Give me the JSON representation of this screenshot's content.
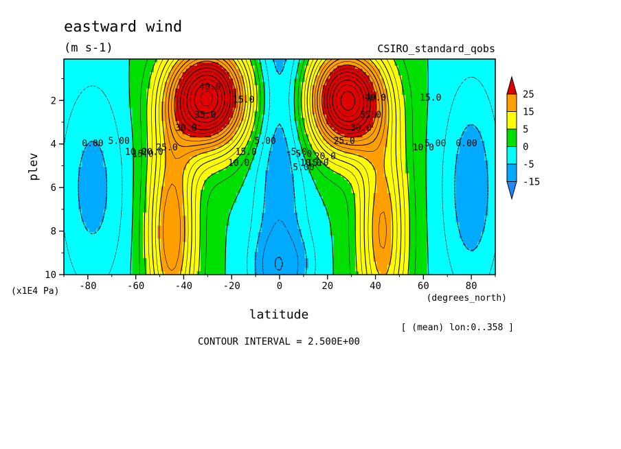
{
  "chart_data": {
    "type": "heatmap",
    "title": "eastward wind",
    "subtitle": "(m s-1)",
    "dataset_label": "CSIRO_standard_qobs",
    "xlabel": "latitude",
    "x_units": "(degrees_north)",
    "ylabel": "plev",
    "y_units": "(x1E4 Pa)",
    "x_ticks": [
      "-80",
      "-60",
      "-40",
      "-20",
      "0",
      "20",
      "40",
      "60",
      "80"
    ],
    "y_ticks": [
      "2",
      "4",
      "6",
      "8",
      "10"
    ],
    "xlim": [
      -90,
      90
    ],
    "ylim": [
      0.1,
      10
    ],
    "y_reversed": true,
    "averaging_note": "[ (mean) lon:0..358 ]",
    "contour_interval": "CONTOUR INTERVAL = 2.500E+00",
    "colorbar": {
      "labels": [
        "25",
        "15",
        "5",
        "0",
        "-5",
        "-15"
      ],
      "bounds": [
        -15,
        -5,
        0,
        5,
        15,
        25
      ],
      "colors": [
        "#1e88ff",
        "#00aaff",
        "#00ffff",
        "#00e000",
        "#ffff00",
        "#ffa000",
        "#e00000"
      ]
    },
    "fill_levels": [
      {
        "min": -15,
        "max": -5,
        "color": "#00aaff"
      },
      {
        "min": -5,
        "max": 0,
        "color": "#00ffff"
      },
      {
        "min": 0,
        "max": 5,
        "color": "#00e000"
      },
      {
        "min": 5,
        "max": 15,
        "color": "#ffff00"
      },
      {
        "min": 15,
        "max": 25,
        "color": "#ffa000"
      },
      {
        "min": 25,
        "max": 45,
        "color": "#e00000"
      }
    ],
    "contour_labels": [
      {
        "text": "40.0",
        "lat": -29,
        "plev": 1.5
      },
      {
        "text": "35.0",
        "lat": -31,
        "plev": 2.8
      },
      {
        "text": "30.0",
        "lat": -39,
        "plev": 3.4
      },
      {
        "text": "25.0",
        "lat": -47,
        "plev": 4.3
      },
      {
        "text": "20.0",
        "lat": -53,
        "plev": 4.5
      },
      {
        "text": "15.0",
        "lat": -57,
        "plev": 4.6
      },
      {
        "text": "10.0",
        "lat": -60,
        "plev": 4.5
      },
      {
        "text": "5.00",
        "lat": -67,
        "plev": 4.0
      },
      {
        "text": "0.00",
        "lat": -78,
        "plev": 4.1
      },
      {
        "text": "15.0",
        "lat": -15,
        "plev": 2.1
      },
      {
        "text": "10.0",
        "lat": -17,
        "plev": 5.0
      },
      {
        "text": "15.0",
        "lat": -14,
        "plev": 4.5
      },
      {
        "text": "5.00",
        "lat": -6,
        "plev": 4.0
      },
      {
        "text": "-5.0",
        "lat": 7,
        "plev": 4.5
      },
      {
        "text": "-5.0",
        "lat": 9,
        "plev": 4.6
      },
      {
        "text": "5.00",
        "lat": 10,
        "plev": 5.2
      },
      {
        "text": "10.0",
        "lat": 13,
        "plev": 5.0
      },
      {
        "text": "15.0",
        "lat": 16,
        "plev": 5.0
      },
      {
        "text": "20.0",
        "lat": 19,
        "plev": 4.7
      },
      {
        "text": "25.0",
        "lat": 27,
        "plev": 4.0
      },
      {
        "text": "30.0",
        "lat": 34,
        "plev": 3.4
      },
      {
        "text": "35.0",
        "lat": 38,
        "plev": 2.8
      },
      {
        "text": "40.0",
        "lat": 40,
        "plev": 2.0
      },
      {
        "text": "15.0",
        "lat": 63,
        "plev": 2.0
      },
      {
        "text": "10.0",
        "lat": 60,
        "plev": 4.3
      },
      {
        "text": "5.00",
        "lat": 65,
        "plev": 4.1
      },
      {
        "text": "0.00",
        "lat": 78,
        "plev": 4.1
      }
    ]
  }
}
